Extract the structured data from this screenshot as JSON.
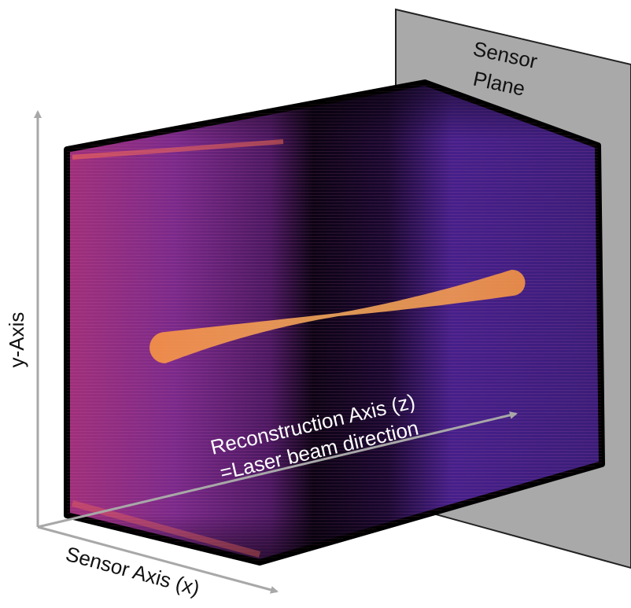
{
  "sensor_plane": {
    "label_line1": "Sensor",
    "label_line2": "Plane"
  },
  "axes": {
    "y": "y-Axis",
    "x": "Sensor Axis (x)",
    "z_line1": "Reconstruction Axis (z)",
    "z_line2": "=Laser beam direction"
  }
}
